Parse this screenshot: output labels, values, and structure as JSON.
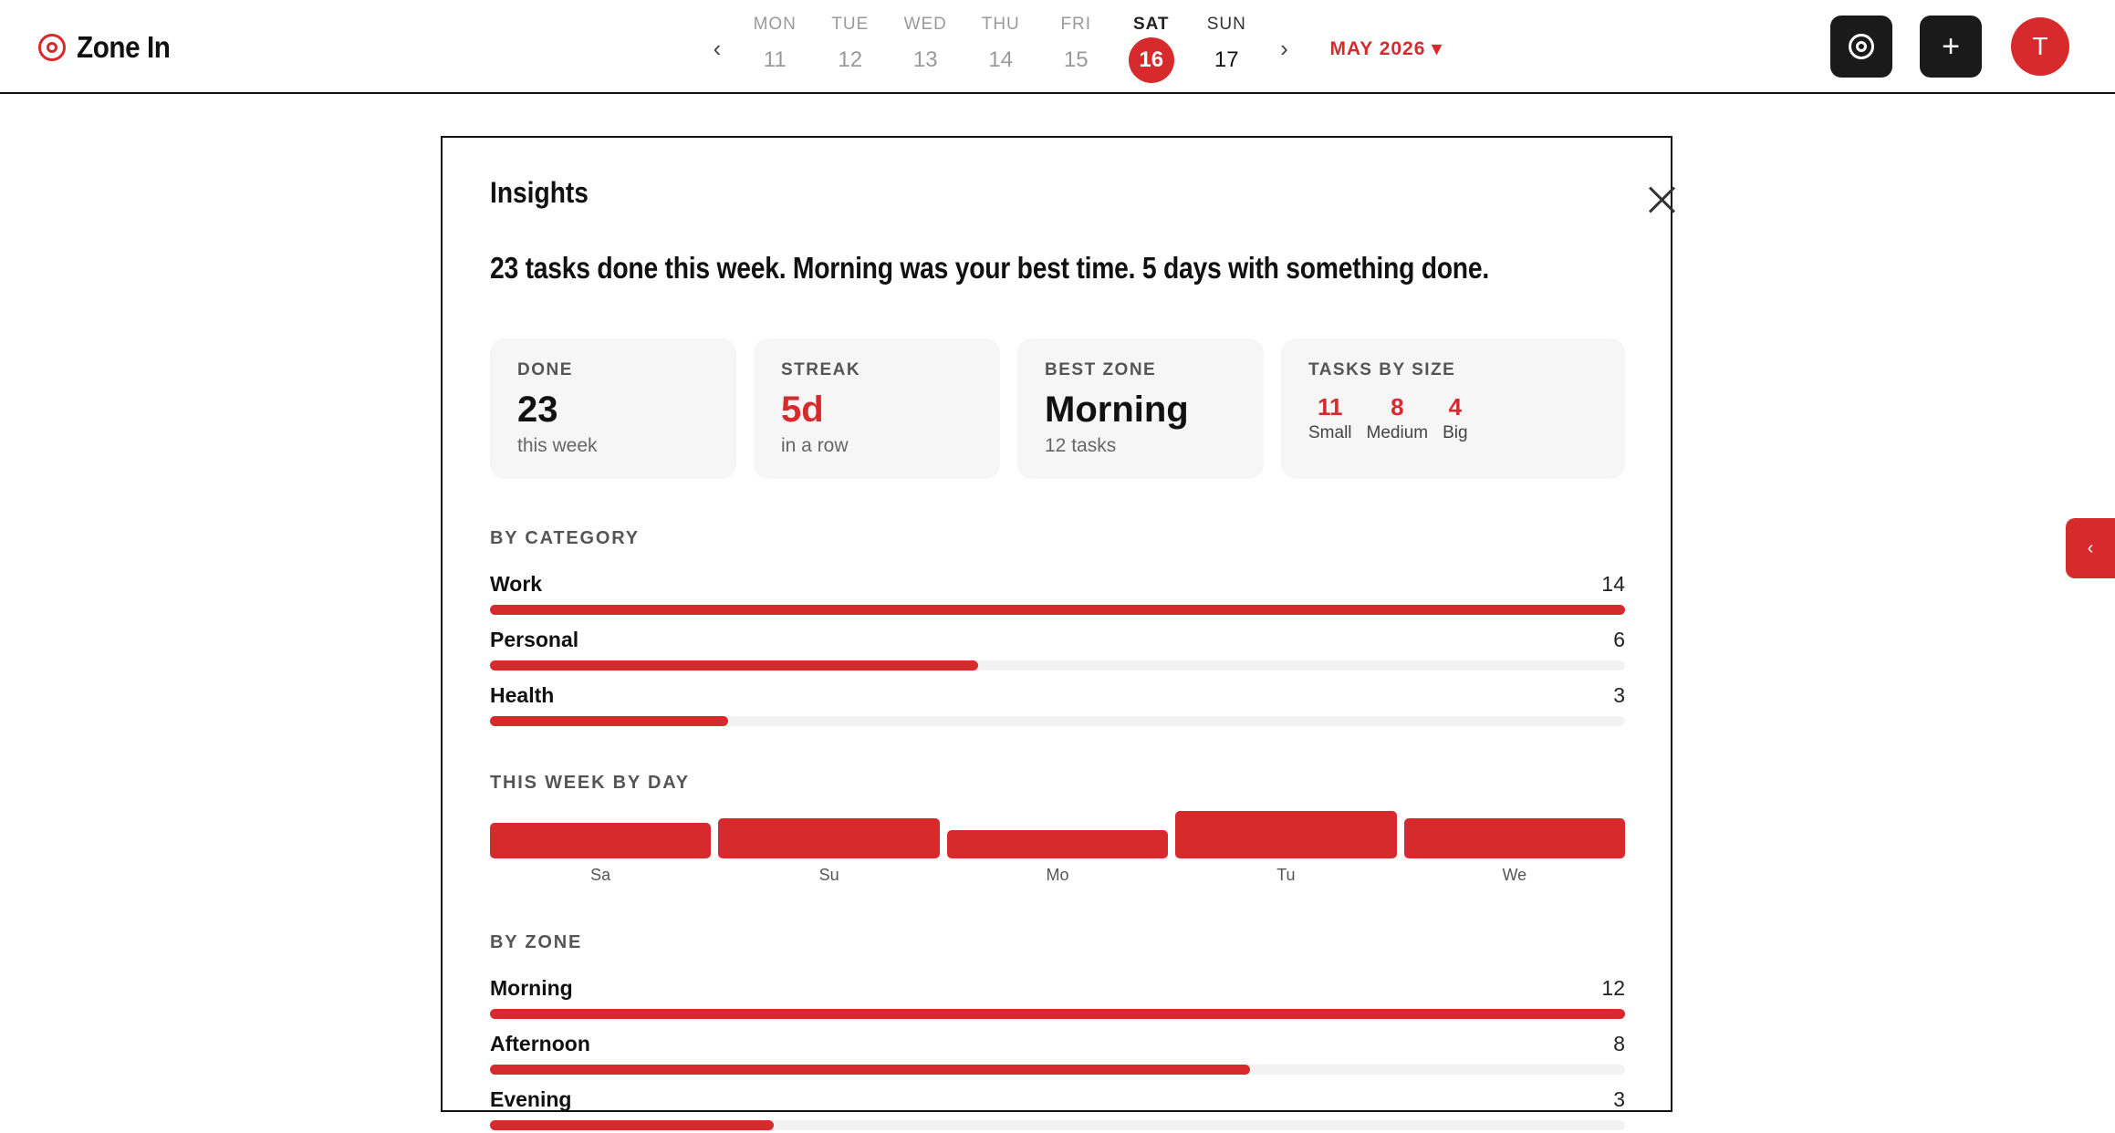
{
  "app": {
    "name": "Zone In"
  },
  "week_nav": {
    "prev_label": "‹",
    "next_label": "›",
    "month_label": "MAY 2026 ▾",
    "days": [
      {
        "name": "MON",
        "num": "11",
        "state": "past"
      },
      {
        "name": "TUE",
        "num": "12",
        "state": "past"
      },
      {
        "name": "WED",
        "num": "13",
        "state": "past"
      },
      {
        "name": "THU",
        "num": "14",
        "state": "past"
      },
      {
        "name": "FRI",
        "num": "15",
        "state": "past"
      },
      {
        "name": "SAT",
        "num": "16",
        "state": "today"
      },
      {
        "name": "SUN",
        "num": "17",
        "state": "future"
      }
    ]
  },
  "actions": {
    "add_label": "+",
    "avatar_initial": "T",
    "focus_icon": "focus-target-icon"
  },
  "side_tab": {
    "label": "‹"
  },
  "insights": {
    "title": "Insights",
    "summary": "23 tasks done this week. Morning was your best time. 5 days with something done.",
    "cards": {
      "done": {
        "label": "DONE",
        "value": "23",
        "sub": "this week"
      },
      "streak": {
        "label": "STREAK",
        "value": "5d",
        "sub": "in a row"
      },
      "best_zone": {
        "label": "BEST ZONE",
        "value": "Morning",
        "sub": "12 tasks"
      },
      "sizes": {
        "label": "TASKS BY SIZE",
        "items": [
          {
            "num": "11",
            "label": "Small"
          },
          {
            "num": "8",
            "label": "Medium"
          },
          {
            "num": "4",
            "label": "Big"
          }
        ]
      }
    },
    "by_category": {
      "label": "BY CATEGORY",
      "rows": [
        {
          "name": "Work",
          "count": "14",
          "fraction": 1.0
        },
        {
          "name": "Personal",
          "count": "6",
          "fraction": 0.43
        },
        {
          "name": "Health",
          "count": "3",
          "fraction": 0.21
        }
      ]
    },
    "by_day": {
      "label": "THIS WEEK BY DAY",
      "days": [
        {
          "label": "Sa",
          "fraction": 0.75
        },
        {
          "label": "Su",
          "fraction": 0.85
        },
        {
          "label": "Mo",
          "fraction": 0.6
        },
        {
          "label": "Tu",
          "fraction": 1.0
        },
        {
          "label": "We",
          "fraction": 0.85
        }
      ]
    },
    "by_zone": {
      "label": "BY ZONE",
      "rows": [
        {
          "name": "Morning",
          "count": "12",
          "fraction": 1.0
        },
        {
          "name": "Afternoon",
          "count": "8",
          "fraction": 0.67
        },
        {
          "name": "Evening",
          "count": "3",
          "fraction": 0.25
        }
      ]
    },
    "colors": {
      "accent": "#d72a2d",
      "track": "#f2f2f2",
      "card_bg": "#f6f6f6"
    }
  }
}
